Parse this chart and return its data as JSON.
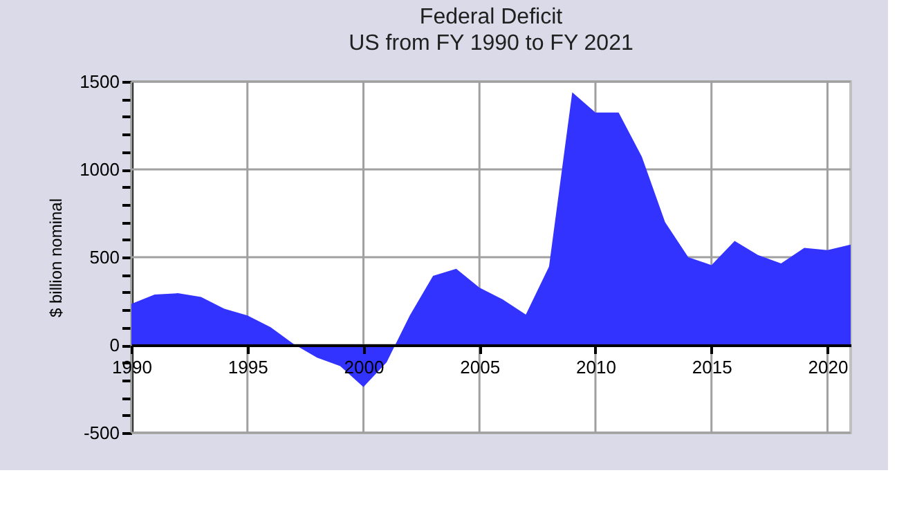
{
  "chart_data": {
    "type": "area",
    "title": "Federal Deficit",
    "subtitle": "US from FY 1990 to FY 2021",
    "ylabel": "$ billion nominal",
    "x": [
      1990,
      1991,
      1992,
      1993,
      1994,
      1995,
      1996,
      1997,
      1998,
      1999,
      2000,
      2001,
      2002,
      2003,
      2004,
      2005,
      2006,
      2007,
      2008,
      2009,
      2010,
      2011,
      2012,
      2013,
      2014,
      2015,
      2016,
      2017,
      2018,
      2019,
      2020,
      2021
    ],
    "series": [
      {
        "color": "#3333ff",
        "values": [
          234,
          287,
          295,
          274,
          207,
          168,
          101,
          5,
          -72,
          -120,
          -239,
          -98,
          168,
          394,
          434,
          327,
          260,
          173,
          447,
          1439,
          1324,
          1324,
          1072,
          700,
          500,
          455,
          593,
          513,
          465,
          553,
          540,
          572
        ]
      }
    ],
    "xlim": [
      1990,
      2021
    ],
    "xticks": [
      1990,
      1995,
      2000,
      2005,
      2010,
      2015,
      2020
    ],
    "ylim": [
      -500,
      1500
    ],
    "yticks": [
      -500,
      {
        "value": -400,
        "label": null
      },
      {
        "value": -300,
        "label": null
      },
      {
        "value": -200,
        "label": null
      },
      {
        "value": -100,
        "label": null
      },
      0,
      {
        "value": 100,
        "label": null
      },
      {
        "value": 200,
        "label": null
      },
      {
        "value": 300,
        "label": null
      },
      {
        "value": 400,
        "label": null
      },
      500,
      {
        "value": 600,
        "label": null
      },
      {
        "value": 700,
        "label": null
      },
      {
        "value": 800,
        "label": null
      },
      {
        "value": 900,
        "label": null
      },
      1000,
      {
        "value": 1100,
        "label": null
      },
      {
        "value": 1200,
        "label": null
      },
      {
        "value": 1300,
        "label": null
      },
      {
        "value": 1400,
        "label": null
      },
      1500
    ],
    "grid": true
  }
}
